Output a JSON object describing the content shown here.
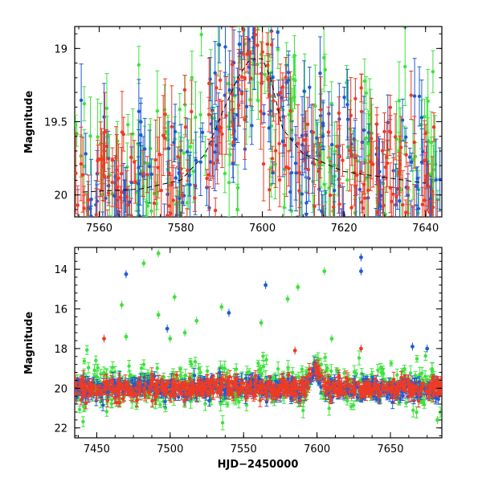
{
  "figure": {
    "top_ylabel": "Magnitude",
    "bottom_ylabel": "Magnitude",
    "bottom_xlabel": "HJD−2450000"
  },
  "colors": {
    "blue": "#1f5bd6",
    "red": "#ef3b24",
    "green": "#3ee23e",
    "model": "#000000"
  },
  "chart_data": [
    {
      "type": "scatter",
      "panel": "top",
      "xlabel": "",
      "ylabel": "Magnitude",
      "xlim": [
        7554,
        7644
      ],
      "ylim": [
        20.15,
        18.85
      ],
      "y_inverted": true,
      "xticks": [
        7560,
        7580,
        7600,
        7620,
        7640
      ],
      "yticks": [
        19,
        19.5,
        20
      ],
      "series": [
        {
          "color": "red",
          "style": "points_with_errorbars"
        },
        {
          "color": "blue",
          "style": "points_with_errorbars"
        },
        {
          "color": "green",
          "style": "points_with_errorbars"
        }
      ],
      "model_curve": {
        "style": "dashed",
        "color": "black",
        "x": [
          7556,
          7570,
          7580,
          7586,
          7590,
          7594,
          7597,
          7600,
          7602,
          7605,
          7610,
          7620,
          7640
        ],
        "y": [
          19.98,
          19.96,
          19.9,
          19.72,
          19.45,
          19.2,
          19.07,
          19.07,
          19.2,
          19.55,
          19.72,
          19.84,
          19.92
        ]
      }
    },
    {
      "type": "scatter",
      "panel": "bottom",
      "xlabel": "HJD−2450000",
      "ylabel": "Magnitude",
      "xlim": [
        7435,
        7685
      ],
      "ylim": [
        22.5,
        12.9
      ],
      "y_inverted": true,
      "xticks": [
        7450,
        7500,
        7550,
        7600,
        7650
      ],
      "yticks": [
        14,
        16,
        18,
        20,
        22
      ],
      "series": [
        {
          "color": "red",
          "style": "points_with_errorbars",
          "baseline_mag": 20.0
        },
        {
          "color": "blue",
          "style": "points_with_errorbars",
          "baseline_mag": 20.0
        },
        {
          "color": "green",
          "style": "points_with_errorbars",
          "baseline_mag": 19.9
        }
      ],
      "outliers": {
        "blue": [
          [
            7470,
            14.25
          ],
          [
            7565,
            14.8
          ],
          [
            7630,
            13.4
          ],
          [
            7630,
            14.1
          ],
          [
            7498,
            17.0
          ],
          [
            7540,
            16.2
          ],
          [
            7665,
            17.9
          ],
          [
            7675,
            18.0
          ]
        ],
        "green": [
          [
            7492,
            13.2
          ],
          [
            7482,
            13.7
          ],
          [
            7467,
            15.8
          ],
          [
            7492,
            16.3
          ],
          [
            7503,
            15.4
          ],
          [
            7510,
            17.2
          ],
          [
            7518,
            16.6
          ],
          [
            7535,
            15.9
          ],
          [
            7580,
            15.5
          ],
          [
            7587,
            14.9
          ],
          [
            7605,
            14.1
          ],
          [
            7470,
            17.4
          ],
          [
            7500,
            17.5
          ],
          [
            7562,
            16.7
          ],
          [
            7610,
            17.5
          ],
          [
            7682,
            21.6
          ]
        ],
        "red": [
          [
            7630,
            18.0
          ],
          [
            7585,
            18.1
          ],
          [
            7455,
            17.5
          ]
        ]
      },
      "event_peak": {
        "x": 7599,
        "y": 19.1
      }
    }
  ]
}
